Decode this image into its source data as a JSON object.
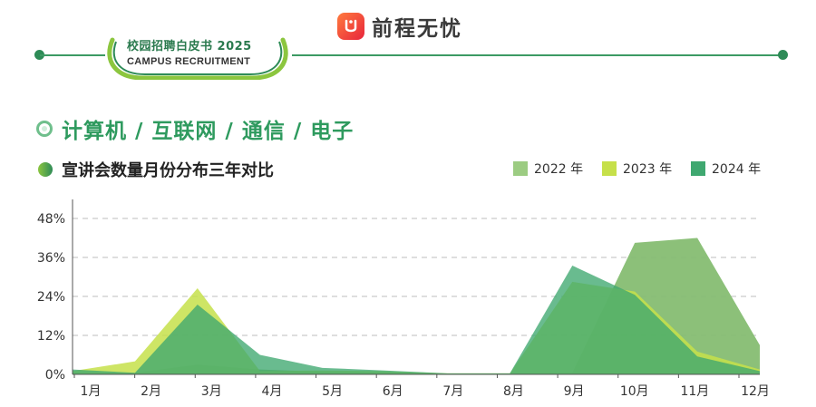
{
  "header": {
    "brand": "前程无忧"
  },
  "badge": {
    "title": "校园招聘白皮书 2025",
    "subtitle": "CAMPUS RECRUITMENT"
  },
  "section": {
    "title": "计算机 / 互联网 / 通信 / 电子"
  },
  "colors": {
    "accent": "#2e9a5e",
    "s2022": "#7bb96a",
    "s2023": "#c6e04a",
    "s2024": "#3fa870"
  },
  "chart_data": {
    "type": "area",
    "title": "宣讲会数量月份分布三年对比",
    "categories": [
      "1月",
      "2月",
      "3月",
      "4月",
      "5月",
      "6月",
      "7月",
      "8月",
      "9月",
      "10月",
      "11月",
      "12月"
    ],
    "ylim": [
      0,
      48
    ],
    "yticks": [
      "0%",
      "12%",
      "24%",
      "36%",
      "48%"
    ],
    "ytick_values": [
      0,
      12,
      24,
      36,
      48
    ],
    "grid": true,
    "legend_position": "top-right",
    "series": [
      {
        "name": "2022 年",
        "values": [
          0.5,
          0.5,
          3.0,
          1.5,
          0.8,
          0.6,
          0.2,
          0.2,
          0.5,
          40.5,
          42.0,
          9.0
        ]
      },
      {
        "name": "2023 年",
        "values": [
          1.0,
          4.0,
          26.5,
          1.0,
          1.2,
          1.0,
          0.3,
          0.3,
          28.5,
          25.5,
          7.0,
          1.5
        ]
      },
      {
        "name": "2024 年",
        "values": [
          1.5,
          0.5,
          21.5,
          6.0,
          2.0,
          1.2,
          0.3,
          0.3,
          33.5,
          24.5,
          5.5,
          1.0
        ]
      }
    ]
  }
}
